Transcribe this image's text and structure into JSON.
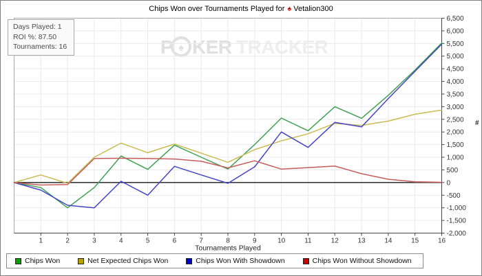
{
  "window": {
    "title_prefix": "Chips Won over Tournaments Played for",
    "player_name": "Vetalion300",
    "suit_icon": "red-spade"
  },
  "stats_box": {
    "lines": [
      "Days Played: 1",
      "ROI %: 87.50",
      "Tournaments: 16"
    ]
  },
  "watermark": {
    "part1": "P",
    "chip_icon": "poker-chip-spade",
    "part2": "KER",
    "part3": "TRACKER"
  },
  "chart_data": {
    "type": "line",
    "title": "Chips Won over Tournaments Played for Vetalion300",
    "xlabel": "Tournaments Played",
    "ylabel": "#",
    "x": [
      0,
      1,
      2,
      3,
      4,
      5,
      6,
      7,
      8,
      9,
      10,
      11,
      12,
      13,
      14,
      15,
      16
    ],
    "x_tick_labels": [
      "1",
      "2",
      "3",
      "4",
      "5",
      "6",
      "7",
      "8",
      "9",
      "10",
      "11",
      "12",
      "13",
      "14",
      "15",
      "16"
    ],
    "ylim": [
      -2000,
      6500
    ],
    "y_tick_step": 500,
    "grid": true,
    "legend_position": "bottom",
    "zero_line": true,
    "series": [
      {
        "name": "Chips Won",
        "color": "#3ea053",
        "swatch": "#00a000",
        "values": [
          0,
          -200,
          -1000,
          -200,
          1050,
          520,
          1480,
          1000,
          530,
          1500,
          2550,
          2050,
          3000,
          2540,
          3450,
          4450,
          5520
        ]
      },
      {
        "name": "Net Expected Chips Won",
        "color": "#c9bc52",
        "swatch": "#b4a400",
        "values": [
          0,
          300,
          -30,
          1000,
          1560,
          1180,
          1520,
          1160,
          800,
          1300,
          1650,
          1930,
          2340,
          2260,
          2430,
          2700,
          2870
        ]
      },
      {
        "name": "Chips Won With Showdown",
        "color": "#4444c8",
        "swatch": "#0000cc",
        "values": [
          0,
          -300,
          -900,
          -1000,
          50,
          -500,
          640,
          300,
          -30,
          620,
          2000,
          1390,
          2380,
          2200,
          3320,
          4400,
          5470
        ]
      },
      {
        "name": "Chips Won Without Showdown",
        "color": "#c65c5c",
        "swatch": "#cc0000",
        "values": [
          0,
          -100,
          -80,
          950,
          960,
          950,
          930,
          840,
          580,
          860,
          530,
          590,
          650,
          350,
          130,
          30,
          10
        ]
      }
    ]
  }
}
